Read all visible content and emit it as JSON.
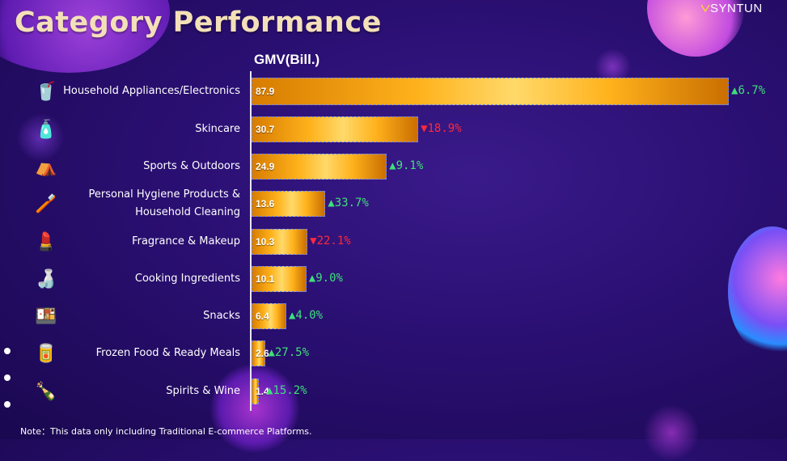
{
  "title": "Category Performance",
  "brand": "SYNTUN",
  "note": "Note：This data only including Traditional E-commerce Platforms.",
  "colors": {
    "up": "#3ee07a",
    "down": "#ff2a3a",
    "bar": "#ffb21c"
  },
  "chart_data": {
    "type": "bar",
    "orientation": "horizontal",
    "title": "Category Performance",
    "ylabel": "GMV(Bill.)",
    "categories": [
      "Household Appliances/Electronics",
      "Skincare",
      "Sports & Outdoors",
      "Personal Hygiene Products &\nHousehold Cleaning",
      "Fragrance & Makeup",
      "Cooking Ingredients",
      "Snacks",
      "Frozen Food & Ready Meals",
      "Spirits & Wine"
    ],
    "values": [
      87.9,
      30.7,
      24.9,
      13.6,
      10.3,
      10.1,
      6.4,
      2.6,
      1.4
    ],
    "value_labels": [
      "87.9",
      "30.7",
      "24.9",
      "13.6",
      "10.3",
      "10.1",
      "6.4",
      "2.6",
      "1.4"
    ],
    "change_labels": [
      "6.7%",
      "18.9%",
      "9.1%",
      "33.7%",
      "22.1%",
      "9.0%",
      "4.0%",
      "27.5%",
      "15.2%"
    ],
    "change_direction": [
      "up",
      "down",
      "up",
      "up",
      "down",
      "up",
      "up",
      "up",
      "up"
    ],
    "icons": [
      "blender-icon",
      "skincare-bottles-icon",
      "sports-gear-icon",
      "cleaning-cup-icon",
      "perfume-makeup-icon",
      "sauce-bottle-icon",
      "snack-box-icon",
      "frozen-cup-icon",
      "wine-bottles-icon"
    ],
    "xlim": [
      0,
      87.9
    ],
    "grid": false,
    "legend": "none"
  }
}
